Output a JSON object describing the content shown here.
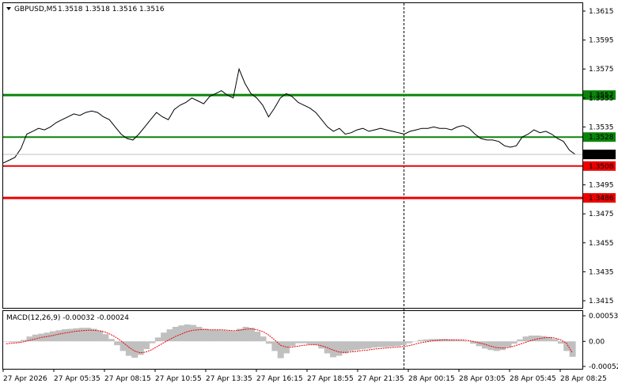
{
  "header": {
    "symbol": "GBPUSD,M5",
    "ohlc": "1.3518 1.3518 1.3516 1.3516",
    "macd_label": "MACD(12,26,9) -0.00032 -0.00024"
  },
  "colors": {
    "green_level": "#0a840a",
    "red_level": "#ee0000",
    "price_line": "#000000",
    "histogram": "#c0c0c0",
    "signal": "#ee0000"
  },
  "chart_data": {
    "type": "line",
    "price_axis_ticks": [
      "1.3615",
      "1.3595",
      "1.3575",
      "1.3555",
      "1.3535",
      "1.3515",
      "1.3495",
      "1.3475",
      "1.3455",
      "1.3435",
      "1.3415"
    ],
    "macd_axis_ticks": [
      "0.00053",
      "0.00",
      "-0.00052"
    ],
    "time_labels": [
      "27 Apr 2026",
      "27 Apr 05:35",
      "27 Apr 08:15",
      "27 Apr 10:55",
      "27 Apr 13:35",
      "27 Apr 16:15",
      "27 Apr 18:55",
      "27 Apr 21:35",
      "28 Apr 00:15",
      "28 Apr 03:05",
      "28 Apr 05:45",
      "28 Apr 08:25"
    ],
    "levels": [
      {
        "value": "1.3557",
        "price": 1.3557,
        "color": "green",
        "thick": true
      },
      {
        "value": "1.3528",
        "price": 1.3528,
        "color": "green",
        "thick": false
      },
      {
        "value": "1.3508",
        "price": 1.3508,
        "color": "red",
        "thick": false
      },
      {
        "value": "1.3486",
        "price": 1.3486,
        "color": "red",
        "thick": true
      }
    ],
    "current_price": "1.3516",
    "price_series": [
      1.351,
      1.3512,
      1.3514,
      1.352,
      1.353,
      1.3532,
      1.3534,
      1.3533,
      1.3535,
      1.3538,
      1.354,
      1.3542,
      1.3544,
      1.3543,
      1.3545,
      1.3546,
      1.3545,
      1.3542,
      1.354,
      1.3535,
      1.353,
      1.3527,
      1.3526,
      1.353,
      1.3535,
      1.354,
      1.3545,
      1.3542,
      1.354,
      1.3547,
      1.355,
      1.3552,
      1.3555,
      1.3553,
      1.3551,
      1.3556,
      1.3558,
      1.356,
      1.3557,
      1.3555,
      1.3575,
      1.3565,
      1.3558,
      1.3555,
      1.355,
      1.3542,
      1.3548,
      1.3555,
      1.3558,
      1.3556,
      1.3552,
      1.355,
      1.3548,
      1.3545,
      1.354,
      1.3535,
      1.3532,
      1.3534,
      1.353,
      1.3531,
      1.3533,
      1.3534,
      1.3532,
      1.3533,
      1.3534,
      1.3533,
      1.3532,
      1.3531,
      1.353,
      1.3532,
      1.3533,
      1.3534,
      1.3534,
      1.3535,
      1.3534,
      1.3534,
      1.3533,
      1.3535,
      1.3536,
      1.3534,
      1.353,
      1.3527,
      1.3526,
      1.3526,
      1.3525,
      1.3522,
      1.3521,
      1.3522,
      1.3528,
      1.353,
      1.3533,
      1.3531,
      1.3532,
      1.353,
      1.3527,
      1.3525,
      1.3519,
      1.3516
    ],
    "macd_histogram": [
      0.0,
      -2e-05,
      -2e-05,
      3e-05,
      0.0001,
      0.00014,
      0.00016,
      0.00018,
      0.00021,
      0.00023,
      0.00025,
      0.00026,
      0.00027,
      0.00028,
      0.00028,
      0.00026,
      0.00022,
      0.00015,
      5e-05,
      -8e-05,
      -0.0002,
      -0.0003,
      -0.00034,
      -0.00028,
      -0.00016,
      -4e-05,
      8e-05,
      0.00018,
      0.00025,
      0.0003,
      0.00033,
      0.00035,
      0.00034,
      0.0003,
      0.00026,
      0.00024,
      0.00024,
      0.00023,
      0.00022,
      0.00021,
      0.00026,
      0.0003,
      0.00028,
      0.0002,
      0.0001,
      -5e-05,
      -0.0002,
      -0.00035,
      -0.00025,
      -0.0001,
      -4e-05,
      -4e-05,
      -6e-05,
      -7e-05,
      -0.00015,
      -0.00025,
      -0.00033,
      -0.0003,
      -0.00025,
      -0.0002,
      -0.00018,
      -0.00016,
      -0.00015,
      -0.00013,
      -0.00012,
      -0.00012,
      -0.00011,
      -0.0001,
      -8e-05,
      -4e-05,
      0.0,
      3e-05,
      4e-05,
      5e-05,
      5e-05,
      5e-05,
      4e-05,
      3e-05,
      2e-05,
      0.0,
      -5e-05,
      -0.0001,
      -0.00015,
      -0.00018,
      -0.0002,
      -0.00018,
      -0.00012,
      -5e-05,
      4e-05,
      0.0001,
      0.00012,
      0.00012,
      0.00011,
      9e-05,
      5e-05,
      -5e-05,
      -0.0002,
      -0.00032
    ],
    "macd_signal": [
      -5e-05,
      -4e-05,
      -3e-05,
      -1e-05,
      2e-05,
      5e-05,
      8e-05,
      0.0001,
      0.00012,
      0.00015,
      0.00017,
      0.00019,
      0.00021,
      0.00022,
      0.00023,
      0.00023,
      0.00022,
      0.00019,
      0.00014,
      7e-05,
      -2e-05,
      -0.00012,
      -0.0002,
      -0.00024,
      -0.00022,
      -0.00017,
      -0.0001,
      -3e-05,
      4e-05,
      0.0001,
      0.00015,
      0.0002,
      0.00023,
      0.00024,
      0.00025,
      0.00024,
      0.00024,
      0.00024,
      0.00023,
      0.00022,
      0.00023,
      0.00025,
      0.00026,
      0.00024,
      0.0002,
      0.00013,
      3e-05,
      -8e-05,
      -0.00012,
      -0.00012,
      -0.0001,
      -8e-05,
      -7e-05,
      -7e-05,
      -9e-05,
      -0.00013,
      -0.00018,
      -0.00022,
      -0.00023,
      -0.00022,
      -0.00021,
      -0.00019,
      -0.00018,
      -0.00016,
      -0.00015,
      -0.00014,
      -0.00013,
      -0.00012,
      -0.00011,
      -9e-05,
      -6e-05,
      -3e-05,
      -1e-05,
      1e-05,
      2e-05,
      3e-05,
      3e-05,
      3e-05,
      3e-05,
      2e-05,
      0.0,
      -3e-05,
      -6e-05,
      -0.0001,
      -0.00013,
      -0.00014,
      -0.00013,
      -0.0001,
      -6e-05,
      -2e-05,
      2e-05,
      5e-05,
      7e-05,
      8e-05,
      7e-05,
      3e-05,
      -4e-05,
      -0.00024
    ]
  }
}
